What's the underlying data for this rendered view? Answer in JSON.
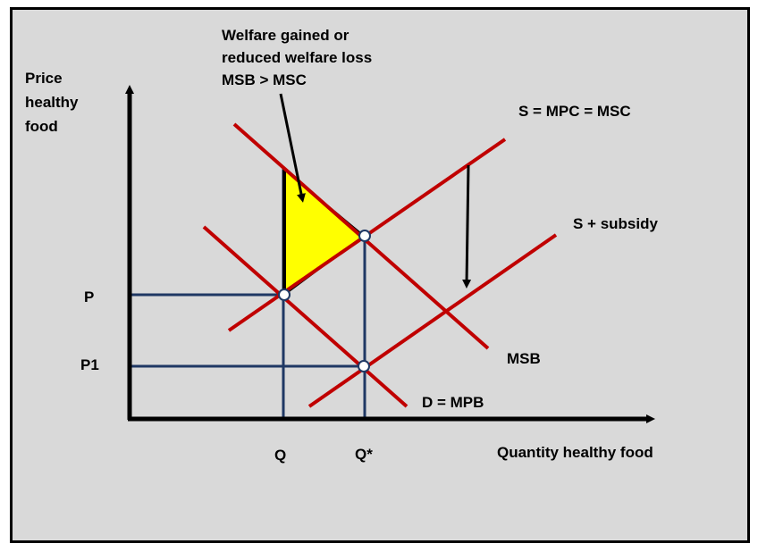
{
  "annotation": {
    "line1": "Welfare gained or",
    "line2": "reduced welfare loss",
    "line3": "MSB > MSC"
  },
  "axes": {
    "y_label": [
      "Price",
      "healthy",
      "food"
    ],
    "x_label": "Quantity healthy food",
    "y_ticks": {
      "p": "P",
      "p1": "P1"
    },
    "x_ticks": {
      "q": "Q",
      "q_star": "Q*"
    }
  },
  "curves": {
    "supply": "S = MPC = MSC",
    "supply_subsidy": "S + subsidy",
    "msb": "MSB",
    "demand": "D = MPB"
  },
  "colors": {
    "background": "#d9d9d9",
    "curve": "#c00000",
    "guide": "#1f3864",
    "welfare_area": "#ffff00",
    "axis": "#000000"
  }
}
